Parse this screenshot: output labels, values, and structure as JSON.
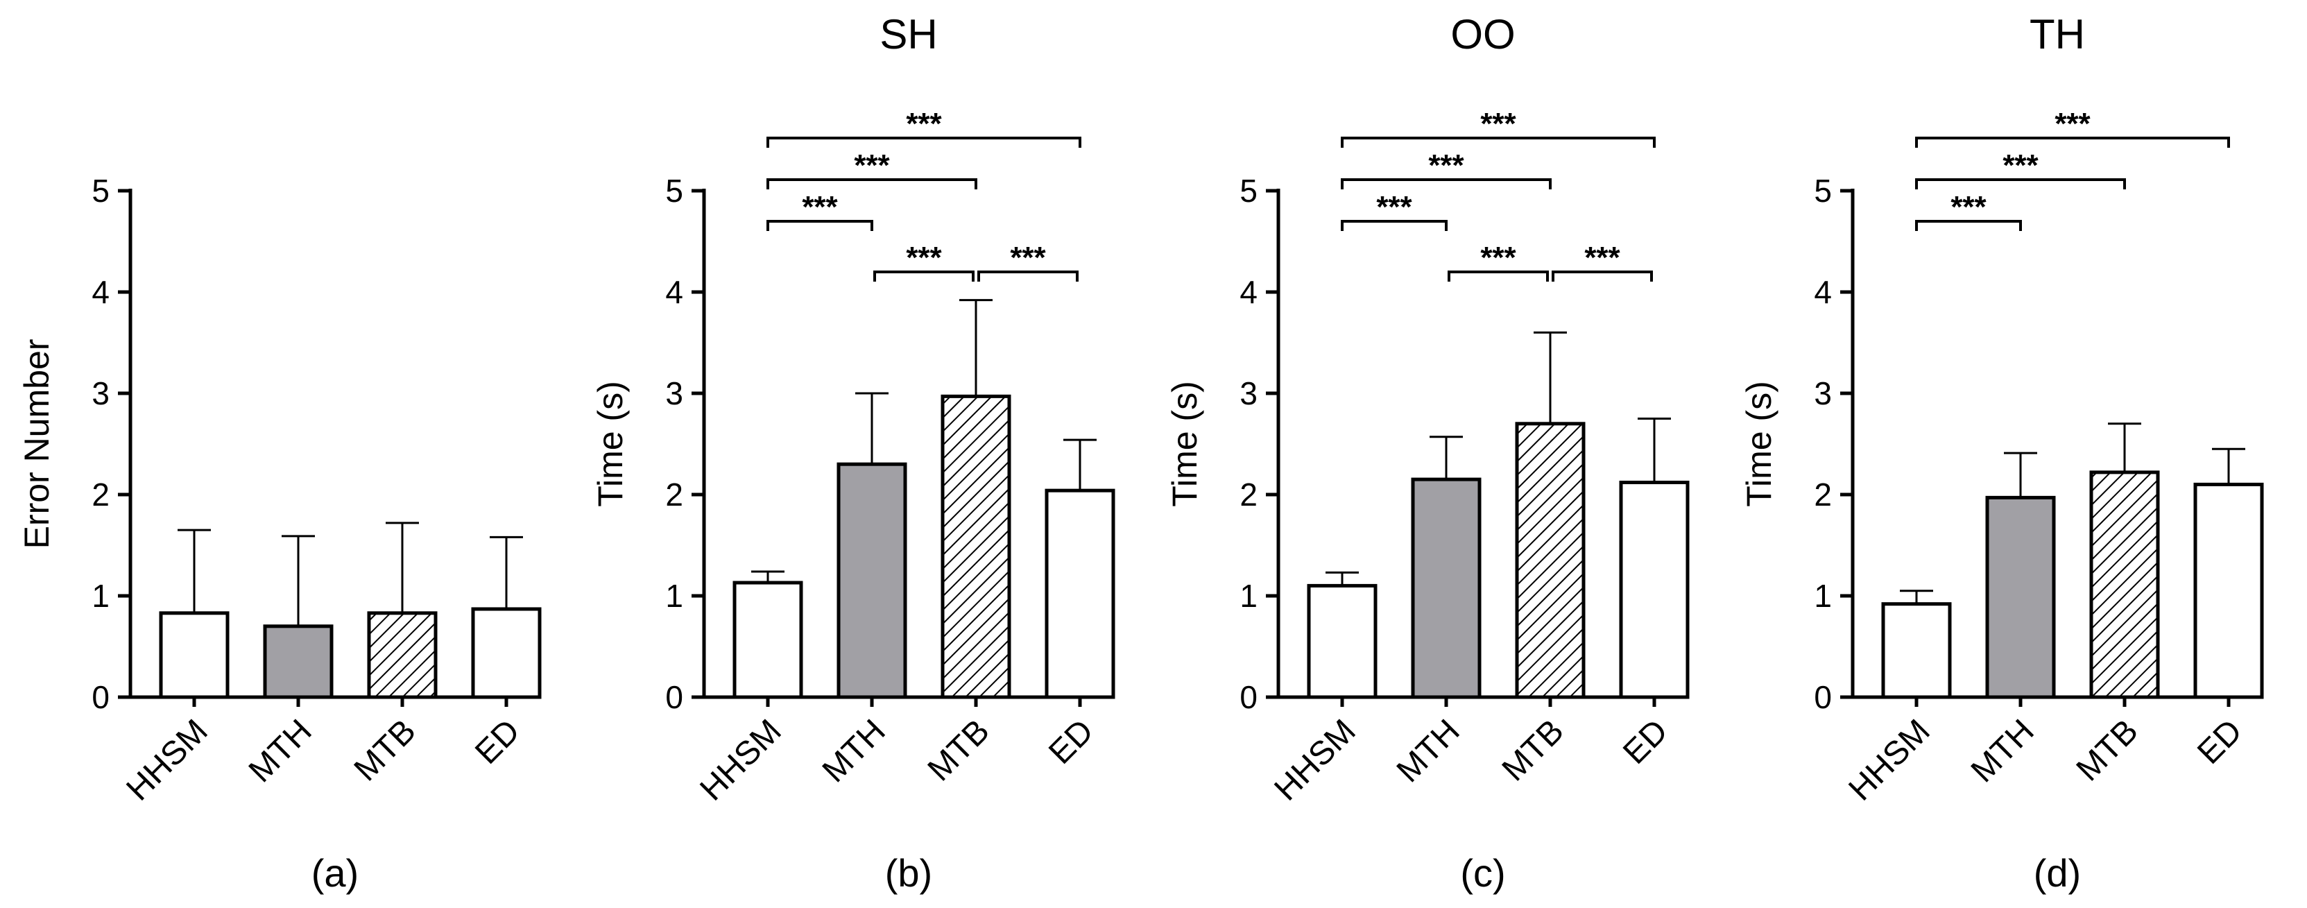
{
  "colors": {
    "white_bar": "#ffffff",
    "gray_bar": "#a1a0a5",
    "hatch_bg": "#ffffff",
    "hatch_line": "#000000"
  },
  "chart_data": [
    {
      "type": "bar",
      "panel": "(a)",
      "title": "",
      "xlabel": "",
      "ylabel": "Error Number",
      "ylim": [
        0,
        5
      ],
      "yticks": [
        "0",
        "1",
        "2",
        "3",
        "4",
        "5"
      ],
      "categories": [
        "HHSM",
        "MTH",
        "MTB",
        "ED"
      ],
      "fills": [
        "white",
        "gray",
        "hatch",
        "white"
      ],
      "values": [
        0.83,
        0.7,
        0.83,
        0.87
      ],
      "errors": [
        0.82,
        0.89,
        0.89,
        0.71
      ],
      "significance": []
    },
    {
      "type": "bar",
      "panel": "(b)",
      "title": "SH",
      "xlabel": "",
      "ylabel": "Time (s)",
      "ylim": [
        0,
        5
      ],
      "yticks": [
        "0",
        "1",
        "2",
        "3",
        "4",
        "5"
      ],
      "categories": [
        "HHSM",
        "MTH",
        "MTB",
        "ED"
      ],
      "fills": [
        "white",
        "gray",
        "hatch",
        "white"
      ],
      "values": [
        1.13,
        2.3,
        2.97,
        2.04
      ],
      "errors": [
        0.11,
        0.7,
        0.95,
        0.5
      ],
      "significance": [
        {
          "from": 0,
          "to": 1,
          "label": "***",
          "level": 1
        },
        {
          "from": 1,
          "to": 2,
          "label": "***",
          "level": 0
        },
        {
          "from": 2,
          "to": 3,
          "label": "***",
          "level": 0
        },
        {
          "from": 0,
          "to": 2,
          "label": "***",
          "level": 2
        },
        {
          "from": 0,
          "to": 3,
          "label": "***",
          "level": 3
        }
      ]
    },
    {
      "type": "bar",
      "panel": "(c)",
      "title": "OO",
      "xlabel": "",
      "ylabel": "Time (s)",
      "ylim": [
        0,
        5
      ],
      "yticks": [
        "0",
        "1",
        "2",
        "3",
        "4",
        "5"
      ],
      "categories": [
        "HHSM",
        "MTH",
        "MTB",
        "ED"
      ],
      "fills": [
        "white",
        "gray",
        "hatch",
        "white"
      ],
      "values": [
        1.1,
        2.15,
        2.7,
        2.12
      ],
      "errors": [
        0.13,
        0.42,
        0.9,
        0.63
      ],
      "significance": [
        {
          "from": 0,
          "to": 1,
          "label": "***",
          "level": 1
        },
        {
          "from": 1,
          "to": 2,
          "label": "***",
          "level": 0
        },
        {
          "from": 2,
          "to": 3,
          "label": "***",
          "level": 0
        },
        {
          "from": 0,
          "to": 2,
          "label": "***",
          "level": 2
        },
        {
          "from": 0,
          "to": 3,
          "label": "***",
          "level": 3
        }
      ]
    },
    {
      "type": "bar",
      "panel": "(d)",
      "title": "TH",
      "xlabel": "",
      "ylabel": "Time (s)",
      "ylim": [
        0,
        5
      ],
      "yticks": [
        "0",
        "1",
        "2",
        "3",
        "4",
        "5"
      ],
      "categories": [
        "HHSM",
        "MTH",
        "MTB",
        "ED"
      ],
      "fills": [
        "white",
        "gray",
        "hatch",
        "white"
      ],
      "values": [
        0.92,
        1.97,
        2.22,
        2.1
      ],
      "errors": [
        0.13,
        0.44,
        0.48,
        0.35
      ],
      "significance": [
        {
          "from": 0,
          "to": 1,
          "label": "***",
          "level": 1
        },
        {
          "from": 0,
          "to": 2,
          "label": "***",
          "level": 2
        },
        {
          "from": 0,
          "to": 3,
          "label": "***",
          "level": 3
        }
      ]
    }
  ]
}
